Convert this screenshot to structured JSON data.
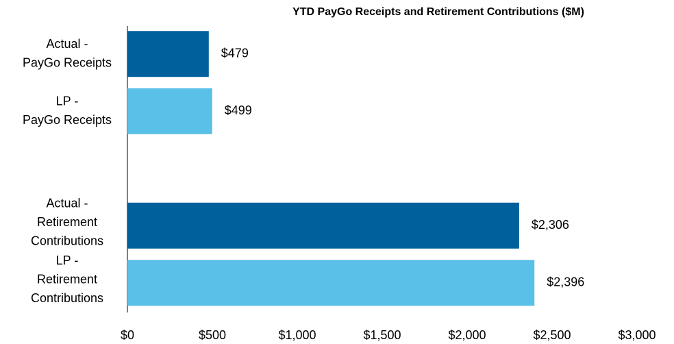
{
  "chart_data": {
    "type": "hbar",
    "title": "YTD PayGo Receipts and Retirement Contributions ($M)",
    "categories": [
      [
        "Actual -",
        "PayGo Receipts"
      ],
      [
        "LP -",
        "PayGo Receipts"
      ],
      null,
      [
        "Actual -",
        "Retirement",
        "Contributions"
      ],
      [
        "LP -",
        "Retirement",
        "Contributions"
      ]
    ],
    "values": [
      479,
      499,
      null,
      2306,
      2396
    ],
    "value_labels": [
      "$479",
      "$499",
      null,
      "$2,306",
      "$2,396"
    ],
    "colors": [
      "#00609c",
      "#5bc0e8",
      null,
      "#00609c",
      "#5bc0e8"
    ],
    "xlim": [
      0,
      3000
    ],
    "xticks": [
      {
        "value": 0,
        "label": "$0"
      },
      {
        "value": 500,
        "label": "$500"
      },
      {
        "value": 1000,
        "label": "$1,000"
      },
      {
        "value": 1500,
        "label": "$1,500"
      },
      {
        "value": 2000,
        "label": "$2,000"
      },
      {
        "value": 2500,
        "label": "$2,500"
      },
      {
        "value": 3000,
        "label": "$3,000"
      }
    ]
  }
}
